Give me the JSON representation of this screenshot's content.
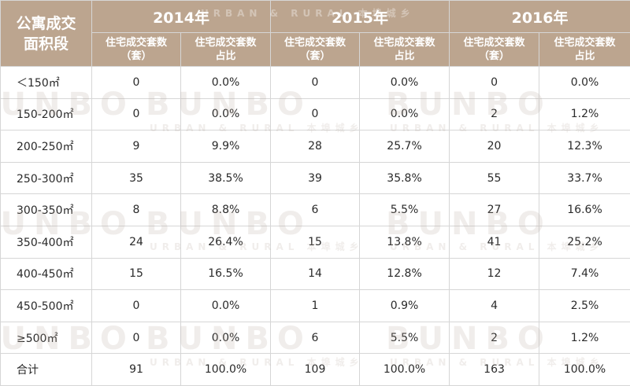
{
  "header": {
    "corner": "公寓成交\n面积段",
    "years": [
      "2014年",
      "2015年",
      "2016年"
    ],
    "col_count": "住宅成交套数\n（套）",
    "col_share": "住宅成交套数\n占比"
  },
  "rows": [
    {
      "range": "＜150㎡",
      "c2014": "0",
      "p2014": "0.0%",
      "c2015": "0",
      "p2015": "0.0%",
      "c2016": "0",
      "p2016": "0.0%"
    },
    {
      "range": "150-200㎡",
      "c2014": "0",
      "p2014": "0.0%",
      "c2015": "0",
      "p2015": "0.0%",
      "c2016": "2",
      "p2016": "1.2%"
    },
    {
      "range": "200-250㎡",
      "c2014": "9",
      "p2014": "9.9%",
      "c2015": "28",
      "p2015": "25.7%",
      "c2016": "20",
      "p2016": "12.3%"
    },
    {
      "range": "250-300㎡",
      "c2014": "35",
      "p2014": "38.5%",
      "c2015": "39",
      "p2015": "35.8%",
      "c2016": "55",
      "p2016": "33.7%"
    },
    {
      "range": "300-350㎡",
      "c2014": "8",
      "p2014": "8.8%",
      "c2015": "6",
      "p2015": "5.5%",
      "c2016": "27",
      "p2016": "16.6%"
    },
    {
      "range": "350-400㎡",
      "c2014": "24",
      "p2014": "26.4%",
      "c2015": "15",
      "p2015": "13.8%",
      "c2016": "41",
      "p2016": "25.2%"
    },
    {
      "range": "400-450㎡",
      "c2014": "15",
      "p2014": "16.5%",
      "c2015": "14",
      "p2015": "12.8%",
      "c2016": "12",
      "p2016": "7.4%"
    },
    {
      "range": "450-500㎡",
      "c2014": "0",
      "p2014": "0.0%",
      "c2015": "1",
      "p2015": "0.9%",
      "c2016": "4",
      "p2016": "2.5%"
    },
    {
      "range": "≥500㎡",
      "c2014": "0",
      "p2014": "0.0%",
      "c2015": "6",
      "p2015": "5.5%",
      "c2016": "2",
      "p2016": "1.2%"
    },
    {
      "range": "合计",
      "c2014": "91",
      "p2014": "100.0%",
      "c2015": "109",
      "p2015": "100.0%",
      "c2016": "163",
      "p2016": "100.0%"
    }
  ],
  "watermark": {
    "main": "BUNBO",
    "sub": "URBAN & RURAL 本埠城乡",
    "header_text": "URBAN & RURAL 本埠城乡"
  },
  "colors": {
    "header_bg": "#bca58f",
    "header_text": "#ffffff",
    "grid": "#d6d6d6",
    "watermark": "#b9aba0"
  }
}
